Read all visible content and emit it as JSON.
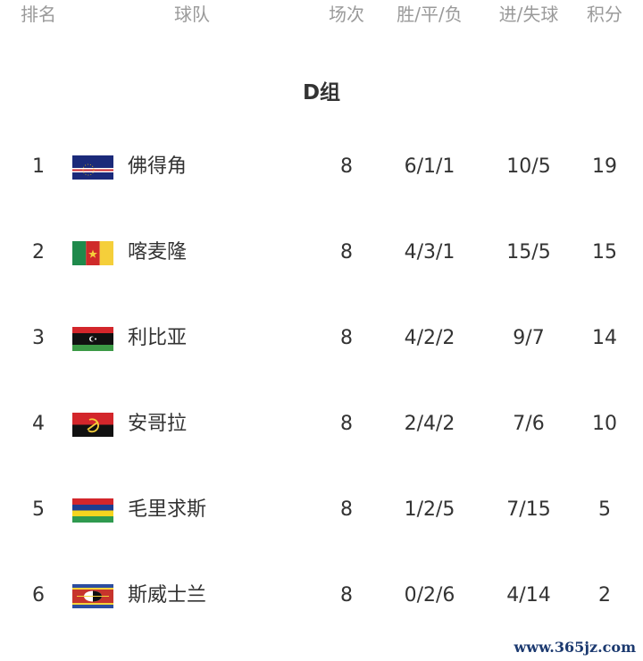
{
  "header": {
    "rank": "排名",
    "team": "球队",
    "played": "场次",
    "wdl": "胜/平/负",
    "goals": "进/失球",
    "points": "积分"
  },
  "group_title": "D组",
  "rows": [
    {
      "rank": "1",
      "flag": "cape-verde-flag",
      "team": "佛得角",
      "played": "8",
      "wdl": "6/1/1",
      "goals": "10/5",
      "points": "19"
    },
    {
      "rank": "2",
      "flag": "cameroon-flag",
      "team": "喀麦隆",
      "played": "8",
      "wdl": "4/3/1",
      "goals": "15/5",
      "points": "15"
    },
    {
      "rank": "3",
      "flag": "libya-flag",
      "team": "利比亚",
      "played": "8",
      "wdl": "4/2/2",
      "goals": "9/7",
      "points": "14"
    },
    {
      "rank": "4",
      "flag": "angola-flag",
      "team": "安哥拉",
      "played": "8",
      "wdl": "2/4/2",
      "goals": "7/6",
      "points": "10"
    },
    {
      "rank": "5",
      "flag": "mauritius-flag",
      "team": "毛里求斯",
      "played": "8",
      "wdl": "1/2/5",
      "goals": "7/15",
      "points": "5"
    },
    {
      "rank": "6",
      "flag": "eswatini-flag",
      "team": "斯威士兰",
      "played": "8",
      "wdl": "0/2/6",
      "goals": "4/14",
      "points": "2"
    }
  ],
  "watermark": "www.365jz.com"
}
